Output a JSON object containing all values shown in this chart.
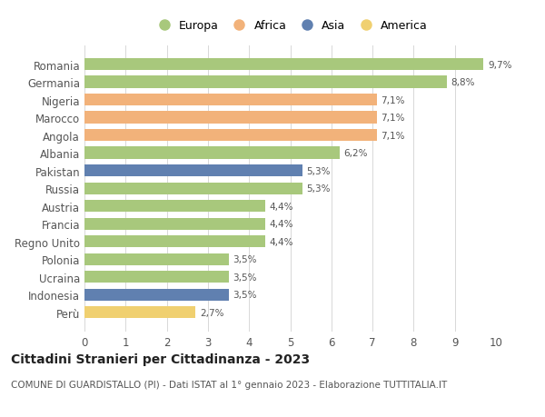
{
  "categories": [
    "Romania",
    "Germania",
    "Nigeria",
    "Marocco",
    "Angola",
    "Albania",
    "Pakistan",
    "Russia",
    "Austria",
    "Francia",
    "Regno Unito",
    "Polonia",
    "Ucraina",
    "Indonesia",
    "Perù"
  ],
  "values": [
    9.7,
    8.8,
    7.1,
    7.1,
    7.1,
    6.2,
    5.3,
    5.3,
    4.4,
    4.4,
    4.4,
    3.5,
    3.5,
    3.5,
    2.7
  ],
  "labels": [
    "9,7%",
    "8,8%",
    "7,1%",
    "7,1%",
    "7,1%",
    "6,2%",
    "5,3%",
    "5,3%",
    "4,4%",
    "4,4%",
    "4,4%",
    "3,5%",
    "3,5%",
    "3,5%",
    "2,7%"
  ],
  "continents": [
    "Europa",
    "Europa",
    "Africa",
    "Africa",
    "Africa",
    "Europa",
    "Asia",
    "Europa",
    "Europa",
    "Europa",
    "Europa",
    "Europa",
    "Europa",
    "Asia",
    "America"
  ],
  "colors": {
    "Europa": "#a8c87c",
    "Africa": "#f2b27a",
    "Asia": "#6080b0",
    "America": "#f0d070"
  },
  "legend_order": [
    "Europa",
    "Africa",
    "Asia",
    "America"
  ],
  "xlim": [
    0,
    10
  ],
  "xticks": [
    0,
    1,
    2,
    3,
    4,
    5,
    6,
    7,
    8,
    9,
    10
  ],
  "title": "Cittadini Stranieri per Cittadinanza - 2023",
  "subtitle": "COMUNE DI GUARDISTALLO (PI) - Dati ISTAT al 1° gennaio 2023 - Elaborazione TUTTITALIA.IT",
  "background_color": "#ffffff",
  "grid_color": "#d8d8d8",
  "bar_height": 0.68,
  "label_fontsize": 7.5,
  "ytick_fontsize": 8.5,
  "xtick_fontsize": 8.5,
  "title_fontsize": 10,
  "subtitle_fontsize": 7.5,
  "legend_fontsize": 9
}
